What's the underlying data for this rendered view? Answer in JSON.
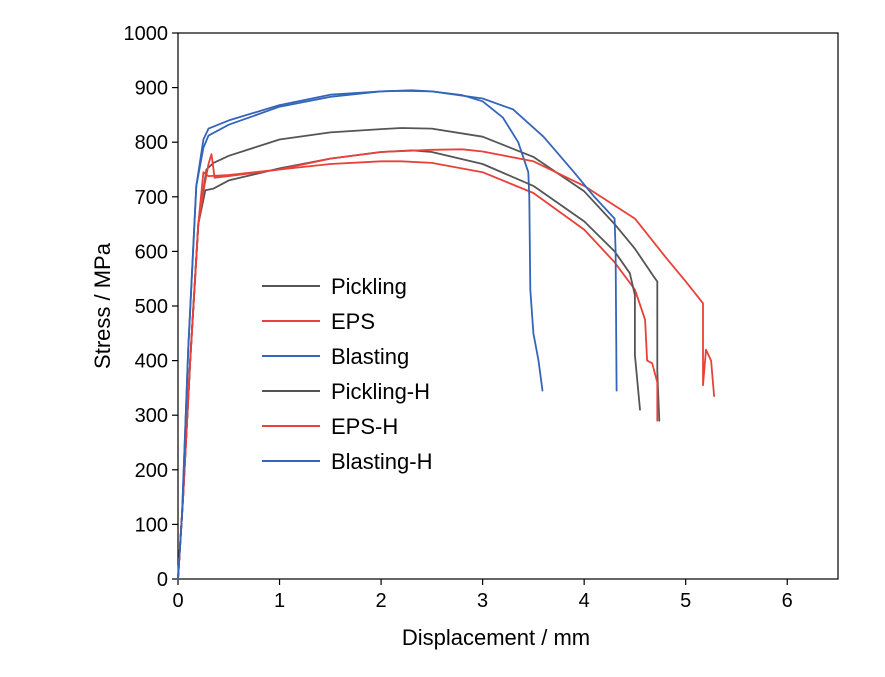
{
  "chart_data": {
    "type": "line",
    "xlabel": "Displacement / mm",
    "ylabel": "Stress / MPa",
    "xlim": [
      0,
      6.5
    ],
    "ylim": [
      0,
      1000
    ],
    "xticks": [
      0,
      1,
      2,
      3,
      4,
      5,
      6
    ],
    "yticks": [
      0,
      100,
      200,
      300,
      400,
      500,
      600,
      700,
      800,
      900,
      1000
    ],
    "grid": false,
    "legend": "left",
    "colors": {
      "Pickling": "#555555",
      "EPS": "#e8413a",
      "Blasting": "#3465b8",
      "Pickling-H": "#555555",
      "EPS-H": "#e8413a",
      "Blasting-H": "#3465b8"
    },
    "series": [
      {
        "name": "Pickling",
        "points": [
          [
            0,
            0
          ],
          [
            0.05,
            150
          ],
          [
            0.12,
            400
          ],
          [
            0.2,
            650
          ],
          [
            0.28,
            750
          ],
          [
            0.35,
            762
          ],
          [
            0.5,
            775
          ],
          [
            1,
            805
          ],
          [
            1.5,
            818
          ],
          [
            2,
            824
          ],
          [
            2.2,
            826
          ],
          [
            2.5,
            825
          ],
          [
            3,
            810
          ],
          [
            3.5,
            773
          ],
          [
            4,
            710
          ],
          [
            4.3,
            650
          ],
          [
            4.5,
            605
          ],
          [
            4.7,
            550
          ],
          [
            4.72,
            545
          ],
          [
            4.72,
            380
          ],
          [
            4.74,
            290
          ]
        ]
      },
      {
        "name": "EPS",
        "points": [
          [
            0,
            0
          ],
          [
            0.05,
            150
          ],
          [
            0.12,
            400
          ],
          [
            0.2,
            650
          ],
          [
            0.25,
            745
          ],
          [
            0.3,
            738
          ],
          [
            0.5,
            740
          ],
          [
            1,
            750
          ],
          [
            1.5,
            760
          ],
          [
            2,
            765
          ],
          [
            2.2,
            765
          ],
          [
            2.5,
            762
          ],
          [
            3,
            745
          ],
          [
            3.5,
            707
          ],
          [
            4,
            640
          ],
          [
            4.3,
            580
          ],
          [
            4.5,
            530
          ],
          [
            4.6,
            475
          ],
          [
            4.62,
            400
          ],
          [
            4.67,
            395
          ],
          [
            4.72,
            360
          ],
          [
            4.72,
            290
          ]
        ]
      },
      {
        "name": "Blasting",
        "points": [
          [
            0,
            0
          ],
          [
            0.04,
            120
          ],
          [
            0.1,
            420
          ],
          [
            0.18,
            720
          ],
          [
            0.25,
            805
          ],
          [
            0.3,
            825
          ],
          [
            0.5,
            840
          ],
          [
            1,
            868
          ],
          [
            1.5,
            887
          ],
          [
            2,
            893
          ],
          [
            2.2,
            894
          ],
          [
            2.5,
            893
          ],
          [
            2.8,
            886
          ],
          [
            3,
            875
          ],
          [
            3.2,
            845
          ],
          [
            3.35,
            800
          ],
          [
            3.45,
            745
          ],
          [
            3.46,
            700
          ],
          [
            3.47,
            530
          ],
          [
            3.5,
            450
          ],
          [
            3.55,
            400
          ],
          [
            3.59,
            345
          ]
        ]
      },
      {
        "name": "Pickling-H",
        "points": [
          [
            0,
            0
          ],
          [
            0.05,
            150
          ],
          [
            0.12,
            400
          ],
          [
            0.2,
            650
          ],
          [
            0.27,
            712
          ],
          [
            0.35,
            715
          ],
          [
            0.5,
            730
          ],
          [
            1,
            752
          ],
          [
            1.5,
            770
          ],
          [
            2,
            782
          ],
          [
            2.3,
            785
          ],
          [
            2.5,
            782
          ],
          [
            3,
            760
          ],
          [
            3.5,
            720
          ],
          [
            4,
            655
          ],
          [
            4.3,
            600
          ],
          [
            4.45,
            560
          ],
          [
            4.5,
            520
          ],
          [
            4.5,
            410
          ],
          [
            4.55,
            310
          ]
        ]
      },
      {
        "name": "EPS-H",
        "points": [
          [
            0,
            0
          ],
          [
            0.05,
            150
          ],
          [
            0.12,
            400
          ],
          [
            0.2,
            650
          ],
          [
            0.26,
            720
          ],
          [
            0.3,
            760
          ],
          [
            0.33,
            778
          ],
          [
            0.36,
            735
          ],
          [
            0.5,
            738
          ],
          [
            1,
            750
          ],
          [
            1.5,
            770
          ],
          [
            2,
            782
          ],
          [
            2.5,
            786
          ],
          [
            2.8,
            787
          ],
          [
            3,
            783
          ],
          [
            3.5,
            765
          ],
          [
            4,
            720
          ],
          [
            4.5,
            660
          ],
          [
            4.8,
            590
          ],
          [
            5,
            545
          ],
          [
            5.17,
            505
          ],
          [
            5.17,
            355
          ],
          [
            5.2,
            420
          ],
          [
            5.25,
            400
          ],
          [
            5.28,
            335
          ]
        ]
      },
      {
        "name": "Blasting-H",
        "points": [
          [
            0,
            0
          ],
          [
            0.04,
            120
          ],
          [
            0.1,
            420
          ],
          [
            0.18,
            720
          ],
          [
            0.25,
            790
          ],
          [
            0.3,
            812
          ],
          [
            0.5,
            832
          ],
          [
            1,
            865
          ],
          [
            1.5,
            883
          ],
          [
            2,
            893
          ],
          [
            2.3,
            895
          ],
          [
            2.5,
            893
          ],
          [
            3,
            880
          ],
          [
            3.3,
            860
          ],
          [
            3.6,
            810
          ],
          [
            3.9,
            745
          ],
          [
            4.1,
            700
          ],
          [
            4.3,
            660
          ],
          [
            4.31,
            600
          ],
          [
            4.32,
            345
          ]
        ]
      }
    ]
  }
}
